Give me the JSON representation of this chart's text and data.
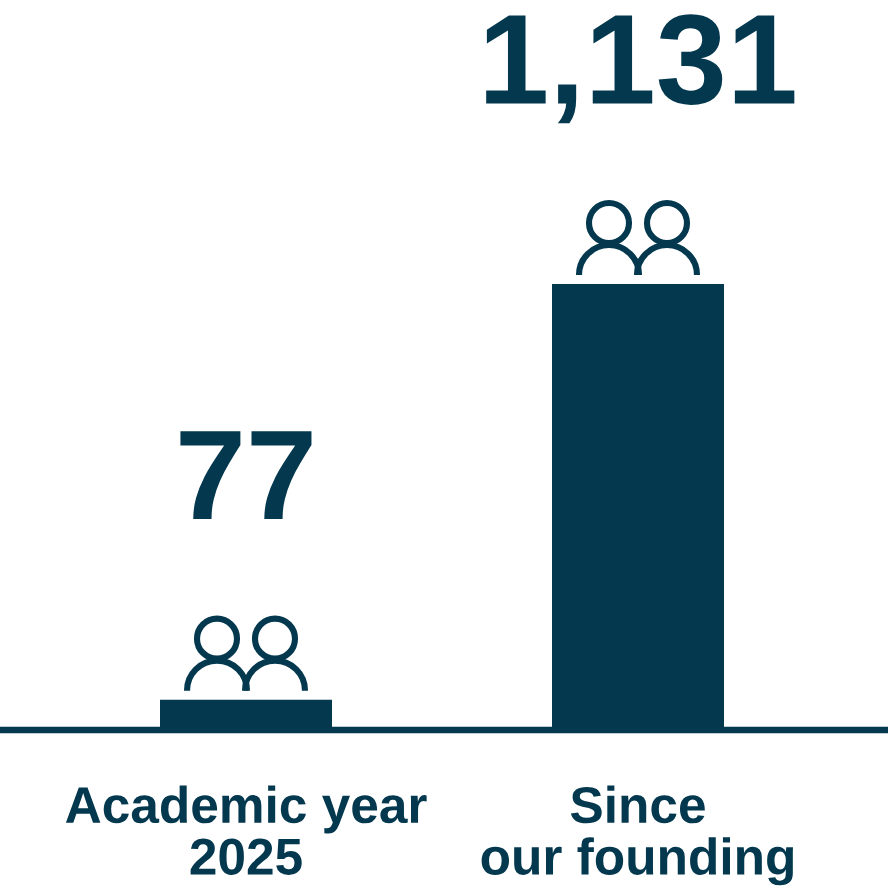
{
  "chart_data": {
    "type": "bar",
    "categories": [
      "Academic year\n2025",
      "Since\nour founding"
    ],
    "values": [
      77,
      1131
    ],
    "color": "#03384e",
    "value_labels": [
      "77",
      "1,131"
    ],
    "tick_labels": "x"
  }
}
